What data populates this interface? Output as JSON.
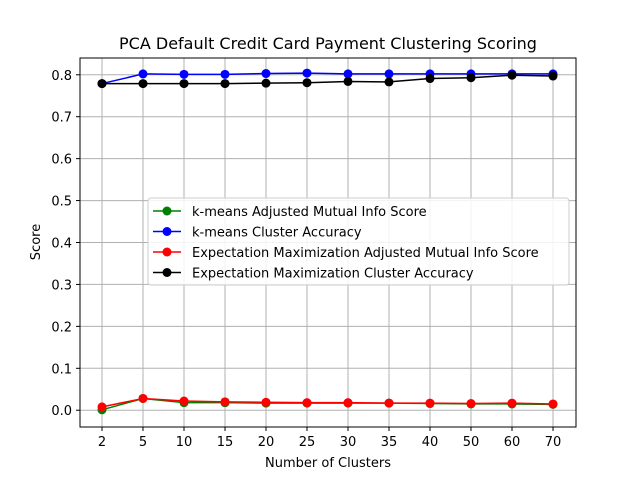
{
  "chart_data": {
    "type": "line",
    "title": "PCA Default Credit Card Payment Clustering Scoring",
    "xlabel": "Number of Clusters",
    "ylabel": "Score",
    "categories": [
      "2",
      "5",
      "10",
      "15",
      "20",
      "25",
      "30",
      "35",
      "40",
      "50",
      "60",
      "70"
    ],
    "ylim": [
      -0.04,
      0.84
    ],
    "yticks": [
      0.0,
      0.1,
      0.2,
      0.3,
      0.4,
      0.5,
      0.6,
      0.7,
      0.8
    ],
    "ytick_labels": [
      "0.0",
      "0.1",
      "0.2",
      "0.3",
      "0.4",
      "0.5",
      "0.6",
      "0.7",
      "0.8"
    ],
    "grid": true,
    "legend_position": "center-right",
    "series": [
      {
        "name": "k-means Adjusted Mutual Info Score",
        "color": "#008000",
        "values": [
          0.001,
          0.028,
          0.018,
          0.018,
          0.017,
          0.017,
          0.017,
          0.017,
          0.016,
          0.015,
          0.015,
          0.014
        ]
      },
      {
        "name": "k-means Cluster Accuracy",
        "color": "#0000ff",
        "values": [
          0.779,
          0.802,
          0.801,
          0.801,
          0.803,
          0.804,
          0.802,
          0.802,
          0.802,
          0.802,
          0.802,
          0.802
        ]
      },
      {
        "name": "Expectation Maximization Adjusted Mutual Info Score",
        "color": "#ff0000",
        "values": [
          0.008,
          0.028,
          0.022,
          0.02,
          0.019,
          0.018,
          0.018,
          0.017,
          0.017,
          0.016,
          0.017,
          0.015
        ]
      },
      {
        "name": "Expectation Maximization Cluster Accuracy",
        "color": "#000000",
        "values": [
          0.779,
          0.779,
          0.779,
          0.779,
          0.78,
          0.781,
          0.784,
          0.783,
          0.791,
          0.793,
          0.799,
          0.797
        ]
      }
    ]
  }
}
